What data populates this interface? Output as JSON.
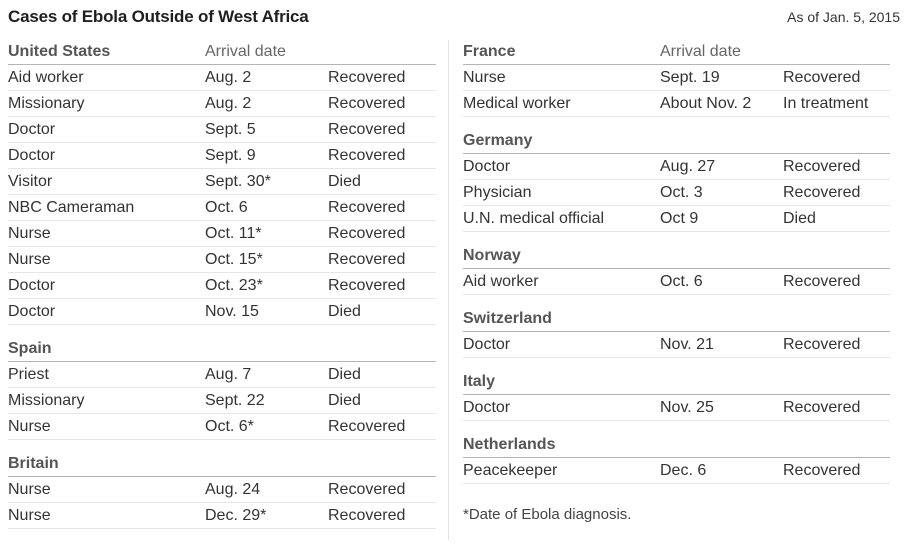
{
  "title": "Cases of Ebola Outside of West Africa",
  "as_of": "As of Jan. 5, 2015",
  "arrival_header": "Arrival date",
  "left_column": [
    {
      "country": "United States",
      "show_arrival_header": true,
      "rows": [
        [
          "Aid worker",
          "Aug. 2",
          "Recovered"
        ],
        [
          "Missionary",
          "Aug. 2",
          "Recovered"
        ],
        [
          "Doctor",
          "Sept. 5",
          "Recovered"
        ],
        [
          "Doctor",
          "Sept. 9",
          "Recovered"
        ],
        [
          "Visitor",
          "Sept. 30*",
          "Died"
        ],
        [
          "NBC Cameraman",
          "Oct. 6",
          "Recovered"
        ],
        [
          "Nurse",
          "Oct. 11*",
          "Recovered"
        ],
        [
          "Nurse",
          "Oct. 15*",
          "Recovered"
        ],
        [
          "Doctor",
          "Oct. 23*",
          "Recovered"
        ],
        [
          "Doctor",
          "Nov. 15",
          "Died"
        ]
      ]
    },
    {
      "country": "Spain",
      "show_arrival_header": false,
      "rows": [
        [
          "Priest",
          "Aug. 7",
          "Died"
        ],
        [
          "Missionary",
          "Sept. 22",
          "Died"
        ],
        [
          "Nurse",
          "Oct. 6*",
          "Recovered"
        ]
      ]
    },
    {
      "country": "Britain",
      "show_arrival_header": false,
      "rows": [
        [
          "Nurse",
          "Aug. 24",
          "Recovered"
        ],
        [
          "Nurse",
          "Dec. 29*",
          "Recovered"
        ]
      ]
    }
  ],
  "right_column": [
    {
      "country": "France",
      "show_arrival_header": true,
      "rows": [
        [
          "Nurse",
          "Sept. 19",
          "Recovered"
        ],
        [
          "Medical worker",
          "About Nov. 2",
          "In treatment"
        ]
      ]
    },
    {
      "country": "Germany",
      "show_arrival_header": false,
      "rows": [
        [
          "Doctor",
          "Aug. 27",
          "Recovered"
        ],
        [
          "Physician",
          "Oct. 3",
          "Recovered"
        ],
        [
          "U.N. medical official",
          "Oct 9",
          "Died"
        ]
      ]
    },
    {
      "country": "Norway",
      "show_arrival_header": false,
      "rows": [
        [
          "Aid worker",
          "Oct. 6",
          "Recovered"
        ]
      ]
    },
    {
      "country": "Switzerland",
      "show_arrival_header": false,
      "rows": [
        [
          "Doctor",
          "Nov. 21",
          "Recovered"
        ]
      ]
    },
    {
      "country": "Italy",
      "show_arrival_header": false,
      "rows": [
        [
          "Doctor",
          "Nov. 25",
          "Recovered"
        ]
      ]
    },
    {
      "country": "Netherlands",
      "show_arrival_header": false,
      "rows": [
        [
          "Peacekeeper",
          "Dec. 6",
          "Recovered"
        ]
      ]
    }
  ],
  "footnote": "*Date of Ebola diagnosis."
}
